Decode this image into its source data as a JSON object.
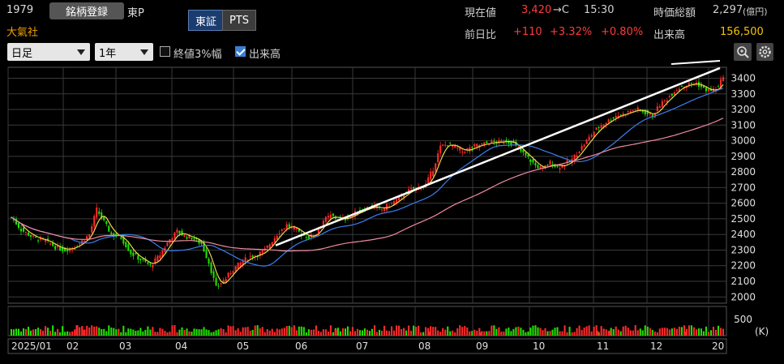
{
  "header": {
    "code": "1979",
    "register_label": "銘柄登録",
    "market": "東P",
    "company": "大氣社",
    "tabs": [
      {
        "label": "東証"
      },
      {
        "label": "PTS"
      }
    ],
    "current_price_label": "現在値",
    "current_price": "3,420",
    "price_suffix": "→C",
    "time": "15:30",
    "market_cap_label": "時価総額",
    "market_cap": "2,297",
    "market_cap_unit": "(億円)",
    "change_label": "前日比",
    "change": "+110",
    "change_pct": "+3.32%",
    "change_pct2": "+0.80%",
    "volume_label": "出来高",
    "volume": "156,500"
  },
  "toolbar": {
    "period_select": "日足",
    "range_select": "1年",
    "check1_label": "終値3%幅",
    "check1_checked": false,
    "check2_label": "出来高",
    "check2_checked": true,
    "zoom_icon": "zoom-icon",
    "settings_icon": "gear-icon"
  },
  "colors": {
    "up": "#ff2a2a",
    "down": "#22e000",
    "ma_short": "#e8d84a",
    "ma_mid": "#3a7ff0",
    "ma_long": "#f08aa0",
    "trendline": "#ffffff"
  },
  "chart_data": {
    "type": "candlestick",
    "y_ticks": [
      "3400",
      "3300",
      "3200",
      "3100",
      "3000",
      "2900",
      "2800",
      "2700",
      "2600",
      "2500",
      "2400",
      "2300",
      "2200",
      "2100",
      "2000"
    ],
    "ylim": [
      1960,
      3470
    ],
    "x_labels": [
      "2025/01",
      "02",
      "03",
      "04",
      "05",
      "06",
      "07",
      "08",
      "09",
      "10",
      "11",
      "12",
      "20"
    ],
    "volume_tick": "500",
    "volume_unit": "(K)",
    "close_path": [
      [
        0,
        2510
      ],
      [
        4,
        2430
      ],
      [
        9,
        2380
      ],
      [
        14,
        2360
      ],
      [
        18,
        2320
      ],
      [
        22,
        2300
      ],
      [
        27,
        2330
      ],
      [
        32,
        2400
      ],
      [
        35,
        2560
      ],
      [
        38,
        2480
      ],
      [
        41,
        2400
      ],
      [
        45,
        2380
      ],
      [
        49,
        2280
      ],
      [
        53,
        2240
      ],
      [
        57,
        2200
      ],
      [
        61,
        2270
      ],
      [
        65,
        2370
      ],
      [
        68,
        2420
      ],
      [
        71,
        2390
      ],
      [
        74,
        2380
      ],
      [
        78,
        2340
      ],
      [
        81,
        2220
      ],
      [
        84,
        2060
      ],
      [
        88,
        2120
      ],
      [
        91,
        2180
      ],
      [
        95,
        2230
      ],
      [
        98,
        2260
      ],
      [
        101,
        2270
      ],
      [
        104,
        2300
      ],
      [
        107,
        2360
      ],
      [
        110,
        2420
      ],
      [
        113,
        2460
      ],
      [
        116,
        2440
      ],
      [
        119,
        2400
      ],
      [
        122,
        2380
      ],
      [
        125,
        2410
      ],
      [
        128,
        2490
      ],
      [
        131,
        2520
      ],
      [
        134,
        2500
      ],
      [
        137,
        2500
      ],
      [
        140,
        2530
      ],
      [
        143,
        2550
      ],
      [
        146,
        2570
      ],
      [
        149,
        2580
      ],
      [
        152,
        2560
      ],
      [
        155,
        2590
      ],
      [
        158,
        2620
      ],
      [
        161,
        2660
      ],
      [
        164,
        2690
      ],
      [
        167,
        2700
      ],
      [
        170,
        2720
      ],
      [
        173,
        2820
      ],
      [
        176,
        2960
      ],
      [
        179,
        2980
      ],
      [
        182,
        2960
      ],
      [
        185,
        2930
      ],
      [
        188,
        2950
      ],
      [
        191,
        2970
      ],
      [
        194,
        2980
      ],
      [
        197,
        2990
      ],
      [
        200,
        2990
      ],
      [
        203,
        3000
      ],
      [
        206,
        2980
      ],
      [
        209,
        2930
      ],
      [
        212,
        2890
      ],
      [
        215,
        2840
      ],
      [
        218,
        2820
      ],
      [
        221,
        2860
      ],
      [
        224,
        2830
      ],
      [
        227,
        2850
      ],
      [
        230,
        2880
      ],
      [
        233,
        2940
      ],
      [
        236,
        3000
      ],
      [
        239,
        3060
      ],
      [
        242,
        3100
      ],
      [
        245,
        3130
      ],
      [
        248,
        3160
      ],
      [
        251,
        3170
      ],
      [
        254,
        3190
      ],
      [
        257,
        3200
      ],
      [
        260,
        3180
      ],
      [
        263,
        3160
      ],
      [
        266,
        3230
      ],
      [
        269,
        3270
      ],
      [
        272,
        3320
      ],
      [
        275,
        3350
      ],
      [
        278,
        3360
      ],
      [
        281,
        3370
      ],
      [
        284,
        3330
      ],
      [
        287,
        3320
      ],
      [
        290,
        3340
      ],
      [
        292,
        3420
      ]
    ],
    "trendline": [
      [
        340,
        2330
      ],
      [
        888,
        3465
      ]
    ],
    "volume_spikes": [
      [
        95,
        380
      ],
      [
        104,
        220
      ],
      [
        414,
        220
      ],
      [
        529,
        150
      ],
      [
        593,
        120
      ],
      [
        737,
        170
      ],
      [
        752,
        180
      ],
      [
        846,
        150
      ]
    ]
  }
}
